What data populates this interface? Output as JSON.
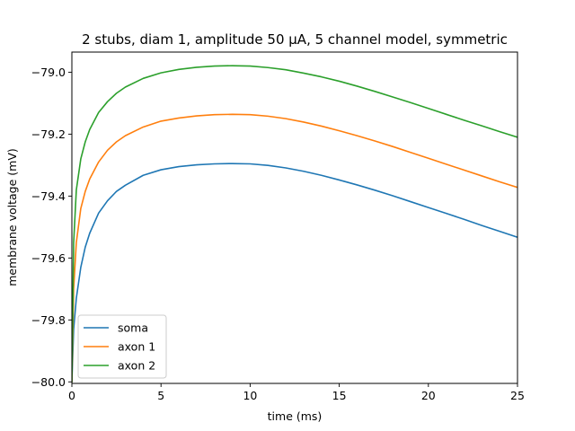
{
  "chart_data": {
    "type": "line",
    "title": "2 stubs, diam 1, amplitude 50 μA, 5 channel model, symmetric",
    "xlabel": "time (ms)",
    "ylabel": "membrane voltage (mV)",
    "xlim": [
      0,
      25
    ],
    "ylim": [
      -80.005,
      -78.935
    ],
    "xticks": [
      0,
      5,
      10,
      15,
      20,
      25
    ],
    "xtick_labels": [
      "0",
      "5",
      "10",
      "15",
      "20",
      "25"
    ],
    "yticks": [
      -80.0,
      -79.8,
      -79.6,
      -79.4,
      -79.2,
      -79.0
    ],
    "ytick_labels": [
      "−80.0",
      "−79.8",
      "−79.6",
      "−79.4",
      "−79.2",
      "−79.0"
    ],
    "grid": false,
    "legend_position": "lower-left",
    "x": [
      0,
      0.1,
      0.25,
      0.5,
      0.75,
      1,
      1.5,
      2,
      2.5,
      3,
      4,
      5,
      6,
      7,
      8,
      9,
      10,
      11,
      12,
      13,
      14,
      15,
      16,
      17,
      18,
      19,
      20,
      21,
      22,
      23,
      24,
      25
    ],
    "series": [
      {
        "name": "soma",
        "color": "#1f77b4",
        "values": [
          -80.0,
          -79.83,
          -79.73,
          -79.63,
          -79.565,
          -79.52,
          -79.455,
          -79.415,
          -79.385,
          -79.365,
          -79.333,
          -79.315,
          -79.305,
          -79.299,
          -79.296,
          -79.295,
          -79.296,
          -79.301,
          -79.309,
          -79.32,
          -79.333,
          -79.348,
          -79.364,
          -79.381,
          -79.399,
          -79.418,
          -79.437,
          -79.456,
          -79.475,
          -79.495,
          -79.514,
          -79.533
        ]
      },
      {
        "name": "axon 1",
        "color": "#ff7f0e",
        "values": [
          -80.0,
          -79.7,
          -79.55,
          -79.44,
          -79.385,
          -79.345,
          -79.29,
          -79.252,
          -79.225,
          -79.205,
          -79.177,
          -79.158,
          -79.148,
          -79.141,
          -79.137,
          -79.136,
          -79.137,
          -79.142,
          -79.15,
          -79.161,
          -79.174,
          -79.189,
          -79.205,
          -79.222,
          -79.24,
          -79.259,
          -79.278,
          -79.297,
          -79.316,
          -79.335,
          -79.354,
          -79.372
        ]
      },
      {
        "name": "axon 2",
        "color": "#2ca02c",
        "values": [
          -80.0,
          -79.55,
          -79.38,
          -79.28,
          -79.225,
          -79.185,
          -79.13,
          -79.095,
          -79.068,
          -79.048,
          -79.02,
          -79.002,
          -78.991,
          -78.984,
          -78.98,
          -78.979,
          -78.98,
          -78.985,
          -78.992,
          -79.003,
          -79.015,
          -79.029,
          -79.045,
          -79.062,
          -79.08,
          -79.098,
          -79.117,
          -79.136,
          -79.155,
          -79.173,
          -79.192,
          -79.21
        ]
      }
    ]
  }
}
